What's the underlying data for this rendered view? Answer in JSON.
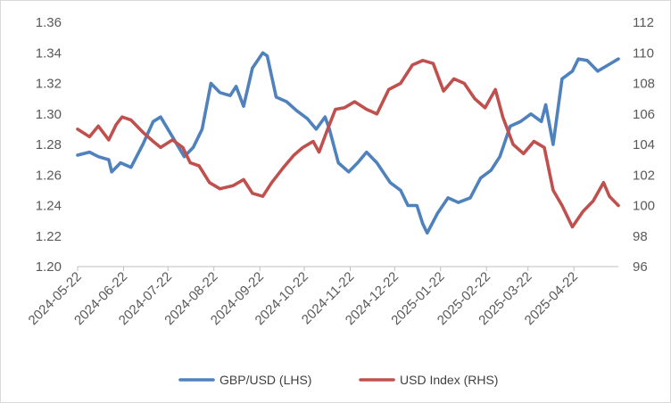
{
  "chart_data": {
    "type": "line",
    "title": "",
    "xlabel": "",
    "ylabel_left": "",
    "ylabel_right": "",
    "x_ticks": [
      "2024-05-22",
      "2024-06-22",
      "2024-07-22",
      "2024-08-22",
      "2024-09-22",
      "2024-10-22",
      "2024-11-22",
      "2024-12-22",
      "2025-01-22",
      "2025-02-22",
      "2025-03-22",
      "2025-04-22"
    ],
    "x_range": [
      "2024-05-22",
      "2025-05-22"
    ],
    "y_left": {
      "min": 1.2,
      "max": 1.36,
      "step": 0.02,
      "ticks": [
        "1.20",
        "1.22",
        "1.24",
        "1.26",
        "1.28",
        "1.30",
        "1.32",
        "1.34",
        "1.36"
      ]
    },
    "y_right": {
      "min": 96,
      "max": 112,
      "step": 2,
      "ticks": [
        "96",
        "98",
        "100",
        "102",
        "104",
        "106",
        "108",
        "110",
        "112"
      ]
    },
    "grid": false,
    "legend_position": "bottom",
    "series": [
      {
        "name": "GBP/USD (LHS)",
        "axis": "left",
        "color": "#4f81bd",
        "x": [
          "2024-05-22",
          "2024-05-30",
          "2024-06-05",
          "2024-06-12",
          "2024-06-14",
          "2024-06-20",
          "2024-06-27",
          "2024-07-05",
          "2024-07-12",
          "2024-07-17",
          "2024-07-25",
          "2024-08-02",
          "2024-08-08",
          "2024-08-14",
          "2024-08-20",
          "2024-08-26",
          "2024-09-02",
          "2024-09-06",
          "2024-09-11",
          "2024-09-17",
          "2024-09-24",
          "2024-09-27",
          "2024-10-03",
          "2024-10-10",
          "2024-10-17",
          "2024-10-24",
          "2024-10-30",
          "2024-11-05",
          "2024-11-08",
          "2024-11-14",
          "2024-11-21",
          "2024-11-27",
          "2024-12-03",
          "2024-12-10",
          "2024-12-19",
          "2024-12-26",
          "2024-12-31",
          "2025-01-06",
          "2025-01-10",
          "2025-01-13",
          "2025-01-20",
          "2025-01-27",
          "2025-02-03",
          "2025-02-11",
          "2025-02-18",
          "2025-02-25",
          "2025-03-03",
          "2025-03-10",
          "2025-03-17",
          "2025-03-24",
          "2025-03-31",
          "2025-04-03",
          "2025-04-08",
          "2025-04-14",
          "2025-04-21",
          "2025-04-25",
          "2025-05-01",
          "2025-05-08",
          "2025-05-15",
          "2025-05-22"
        ],
        "values": [
          1.273,
          1.275,
          1.272,
          1.27,
          1.262,
          1.268,
          1.265,
          1.28,
          1.295,
          1.298,
          1.285,
          1.272,
          1.278,
          1.29,
          1.32,
          1.314,
          1.312,
          1.318,
          1.305,
          1.33,
          1.34,
          1.338,
          1.311,
          1.308,
          1.302,
          1.297,
          1.29,
          1.298,
          1.29,
          1.268,
          1.262,
          1.268,
          1.275,
          1.268,
          1.255,
          1.25,
          1.24,
          1.24,
          1.228,
          1.222,
          1.235,
          1.245,
          1.242,
          1.245,
          1.258,
          1.263,
          1.272,
          1.292,
          1.295,
          1.3,
          1.295,
          1.306,
          1.28,
          1.323,
          1.328,
          1.336,
          1.335,
          1.328,
          1.332,
          1.336
        ]
      },
      {
        "name": "USD Index (RHS)",
        "axis": "right",
        "color": "#c0504d",
        "x": [
          "2024-05-22",
          "2024-05-30",
          "2024-06-05",
          "2024-06-12",
          "2024-06-17",
          "2024-06-21",
          "2024-06-27",
          "2024-07-05",
          "2024-07-12",
          "2024-07-17",
          "2024-07-25",
          "2024-08-01",
          "2024-08-06",
          "2024-08-12",
          "2024-08-19",
          "2024-08-26",
          "2024-09-04",
          "2024-09-11",
          "2024-09-17",
          "2024-09-24",
          "2024-09-30",
          "2024-10-08",
          "2024-10-15",
          "2024-10-21",
          "2024-10-28",
          "2024-11-01",
          "2024-11-06",
          "2024-11-12",
          "2024-11-18",
          "2024-11-25",
          "2024-12-03",
          "2024-12-10",
          "2024-12-18",
          "2024-12-26",
          "2025-01-03",
          "2025-01-10",
          "2025-01-17",
          "2025-01-24",
          "2025-01-31",
          "2025-02-07",
          "2025-02-14",
          "2025-02-21",
          "2025-02-28",
          "2025-03-05",
          "2025-03-12",
          "2025-03-19",
          "2025-03-26",
          "2025-04-02",
          "2025-04-08",
          "2025-04-14",
          "2025-04-21",
          "2025-04-28",
          "2025-05-05",
          "2025-05-12",
          "2025-05-16",
          "2025-05-22"
        ],
        "values": [
          105.0,
          104.5,
          105.2,
          104.3,
          105.3,
          105.8,
          105.6,
          104.8,
          104.2,
          103.8,
          104.3,
          103.8,
          102.8,
          102.6,
          101.5,
          101.1,
          101.3,
          101.7,
          100.8,
          100.6,
          101.5,
          102.5,
          103.3,
          103.8,
          104.2,
          103.5,
          104.8,
          106.3,
          106.4,
          106.8,
          106.3,
          106.0,
          107.6,
          108.0,
          109.2,
          109.5,
          109.3,
          107.5,
          108.3,
          108.0,
          107.0,
          106.4,
          107.6,
          105.8,
          104.0,
          103.4,
          104.2,
          103.8,
          101.0,
          100.0,
          98.6,
          99.6,
          100.3,
          101.5,
          100.6,
          100.0
        ]
      }
    ]
  }
}
